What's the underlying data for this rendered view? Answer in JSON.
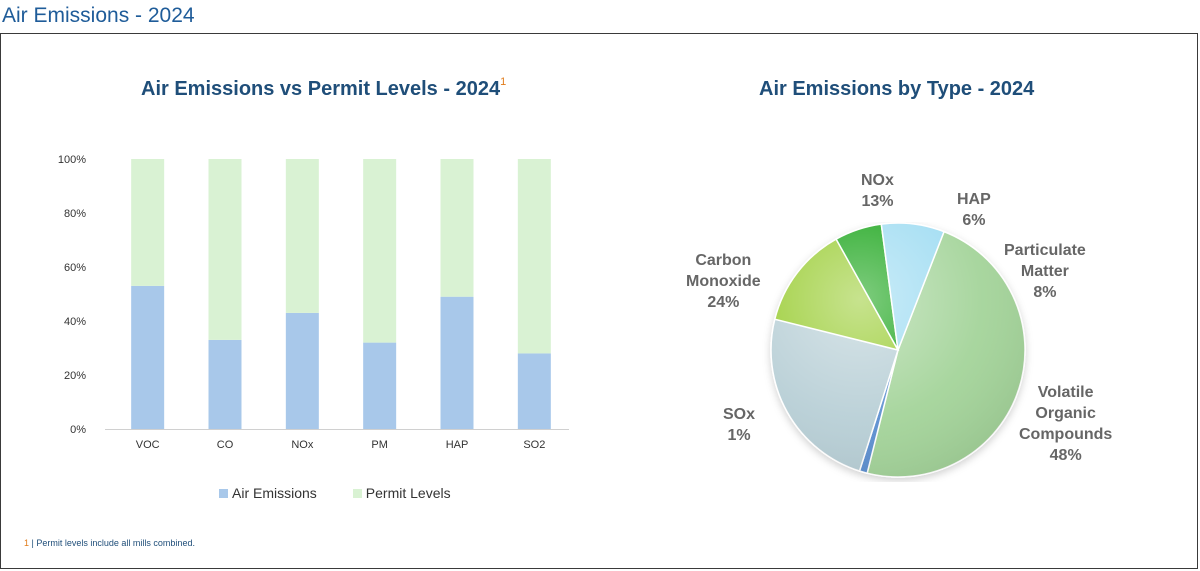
{
  "page": {
    "title": "Air Emissions - 2024"
  },
  "bar_chart": {
    "title": "Air Emissions vs Permit Levels - 2024",
    "footnote_marker": "1",
    "legend": {
      "air_emissions": "Air Emissions",
      "permit_levels": "Permit Levels"
    },
    "footnote": {
      "number": "1",
      "separator": "|",
      "text": "Permit levels include all mills combined."
    }
  },
  "pie_chart": {
    "title": "Air Emissions by Type - 2024",
    "labels": {
      "nox": {
        "name": "NOx",
        "pct": "13%"
      },
      "hap": {
        "name": "HAP",
        "pct": "6%"
      },
      "pm": {
        "name1": "Particulate",
        "name2": "Matter",
        "pct": "8%"
      },
      "co": {
        "name1": "Carbon",
        "name2": "Monoxide",
        "pct": "24%"
      },
      "sox": {
        "name": "SOx",
        "pct": "1%"
      },
      "voc": {
        "name1": "Volatile",
        "name2": "Organic",
        "name3": "Compounds",
        "pct": "48%"
      }
    }
  },
  "colors": {
    "title": "#1f5c99",
    "air_emissions": "#a8c8ea",
    "permit_levels": "#d9f2d3",
    "footnote_marker": "#e07b1a"
  },
  "chart_data": [
    {
      "type": "bar",
      "stacked": true,
      "title": "Air Emissions vs Permit Levels - 2024",
      "categories": [
        "VOC",
        "CO",
        "NOx",
        "PM",
        "HAP",
        "SO2"
      ],
      "series": [
        {
          "name": "Air Emissions",
          "values": [
            53,
            33,
            43,
            32,
            49,
            28
          ],
          "color": "#a8c8ea"
        },
        {
          "name": "Permit Levels",
          "values": [
            47,
            67,
            57,
            68,
            51,
            72
          ],
          "color": "#d9f2d3"
        }
      ],
      "y_ticks": [
        "0%",
        "20%",
        "40%",
        "60%",
        "80%",
        "100%"
      ],
      "ylim": [
        0,
        100
      ],
      "grid": false,
      "legend_position": "bottom"
    },
    {
      "type": "pie",
      "title": "Air Emissions by Type - 2024",
      "slices": [
        {
          "name": "Volatile Organic Compounds",
          "value": 48,
          "color": "#a4d49a"
        },
        {
          "name": "SOx",
          "value": 1,
          "color": "#5b8fd0"
        },
        {
          "name": "Carbon Monoxide",
          "value": 24,
          "color": "#b8cfd6"
        },
        {
          "name": "NOx",
          "value": 13,
          "color": "#99cc33"
        },
        {
          "name": "HAP",
          "value": 6,
          "color": "#17a317"
        },
        {
          "name": "Particulate Matter",
          "value": 8,
          "color": "#9fdcf2"
        }
      ]
    }
  ]
}
